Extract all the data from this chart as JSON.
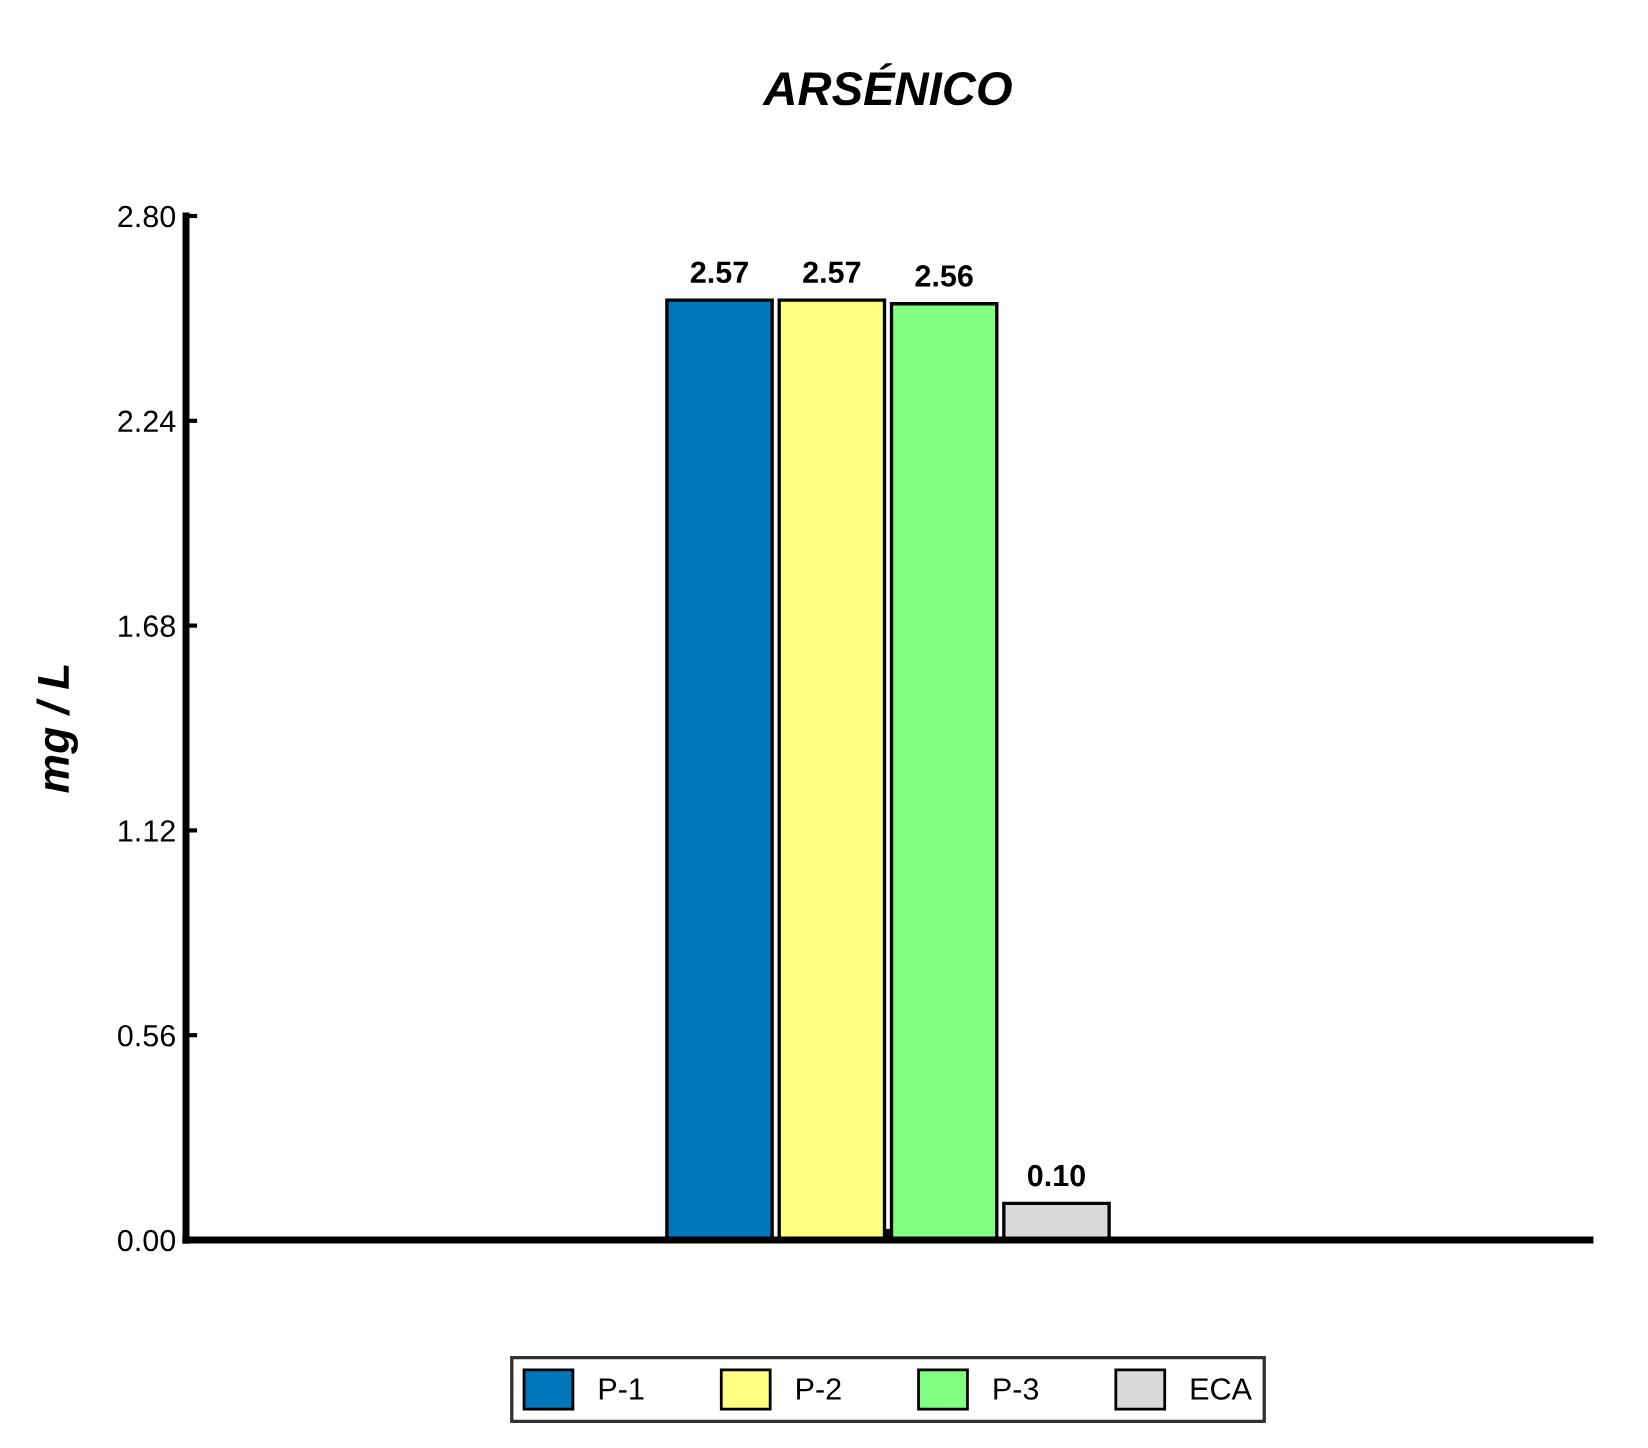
{
  "chart_data": {
    "type": "bar",
    "title": "ARSÉNICO",
    "ylabel": "mg / L",
    "categories": [
      null
    ],
    "series": [
      {
        "name": "P-1",
        "color": "#0077bb",
        "values": [
          2.57
        ],
        "value_labels": [
          "2.57"
        ]
      },
      {
        "name": "P-2",
        "color": "#ffff80",
        "values": [
          2.57
        ],
        "value_labels": [
          "2.57"
        ]
      },
      {
        "name": "P-3",
        "color": "#80ff80",
        "values": [
          2.56
        ],
        "value_labels": [
          "2.56"
        ]
      },
      {
        "name": "ECA",
        "color": "#d9d9d9",
        "values": [
          0.1
        ],
        "value_labels": [
          "0.10"
        ]
      }
    ],
    "ylim": [
      0,
      2.8
    ],
    "yticks": [
      {
        "value": 0,
        "label": "0.00"
      },
      {
        "value": 0.56,
        "label": "0.56"
      },
      {
        "value": 1.12,
        "label": "1.12"
      },
      {
        "value": 1.68,
        "label": "1.68"
      },
      {
        "value": 2.24,
        "label": "2.24"
      },
      {
        "value": 2.8,
        "label": "2.80"
      }
    ],
    "legend": "bottom",
    "grid": false
  }
}
